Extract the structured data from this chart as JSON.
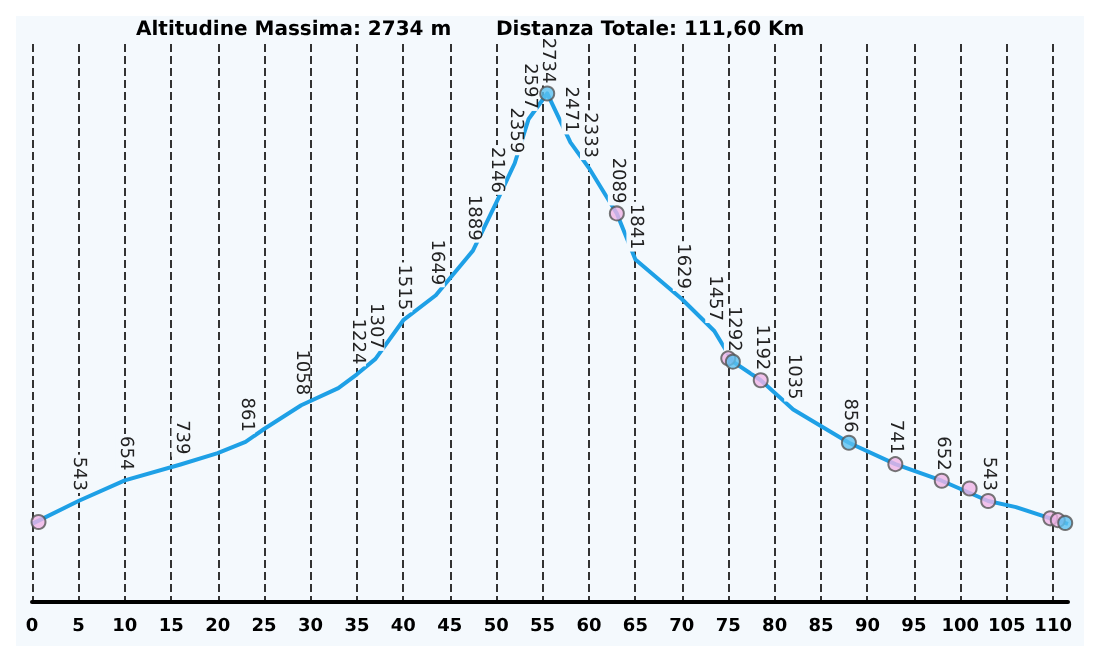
{
  "chart_data": {
    "type": "line",
    "annotations": [
      "Altitudine Massima: 2734 m",
      "Distanza Totale: 111,60 Km"
    ],
    "xlim": [
      0,
      111.6
    ],
    "xticks": [
      0,
      5,
      10,
      15,
      20,
      25,
      30,
      35,
      40,
      45,
      50,
      55,
      60,
      65,
      70,
      75,
      80,
      85,
      90,
      95,
      100,
      105,
      110
    ],
    "tick_labels": "x",
    "grid": "x",
    "line_style": "solid",
    "marker": "none",
    "series": [
      {
        "color": "#1ea0e6",
        "x": [
          0,
          5,
          10,
          16,
          20,
          23,
          25,
          29,
          33,
          35,
          37,
          40,
          43.5,
          47.5,
          50,
          52,
          53.5,
          55.5,
          58,
          60,
          63,
          65,
          70,
          73.5,
          75.5,
          78.5,
          82,
          88,
          93,
          98,
          103,
          106,
          109.7,
          111.6
        ],
        "values": [
          420,
          543,
          654,
          739,
          800,
          861,
          930,
          1058,
          1150,
          1224,
          1307,
          1515,
          1649,
          1889,
          2146,
          2359,
          2597,
          2734,
          2471,
          2333,
          2089,
          1841,
          1629,
          1457,
          1292,
          1192,
          1035,
          856,
          741,
          652,
          543,
          510,
          450,
          420
        ],
        "value_labels": [
          null,
          "543",
          "654",
          "739",
          null,
          "861",
          null,
          "1058",
          null,
          "1224",
          "1307",
          "1515",
          "1649",
          "1889",
          "2146",
          "2359",
          "2597",
          "2734",
          "2471",
          "2333",
          "2089",
          "1841",
          "1629",
          "1457",
          "1292",
          "1192",
          "1035",
          "856",
          "741",
          "652",
          "543",
          null,
          null,
          null
        ]
      },
      {
        "type": "scatter",
        "marker": "circle",
        "colors": [
          "#f0b4e6",
          "#5bc0f0",
          "#f0b4e6",
          "#f0b4e6",
          "#5bc0f0",
          "#f0b4e6",
          "#5bc0f0",
          "#f0b4e6",
          "#f0b4e6",
          "#f0b4e6",
          "#f0b4e6",
          "#f0b4e6",
          "#f0b4e6",
          "#5bc0f0"
        ],
        "x": [
          0.7,
          55.5,
          63,
          75,
          75.5,
          78.5,
          88,
          93,
          98,
          101,
          103,
          109.7,
          110.5,
          111.3
        ],
        "values": [
          430,
          2734,
          2089,
          1310,
          1292,
          1192,
          856,
          741,
          652,
          610,
          543,
          450,
          440,
          425
        ]
      }
    ]
  }
}
